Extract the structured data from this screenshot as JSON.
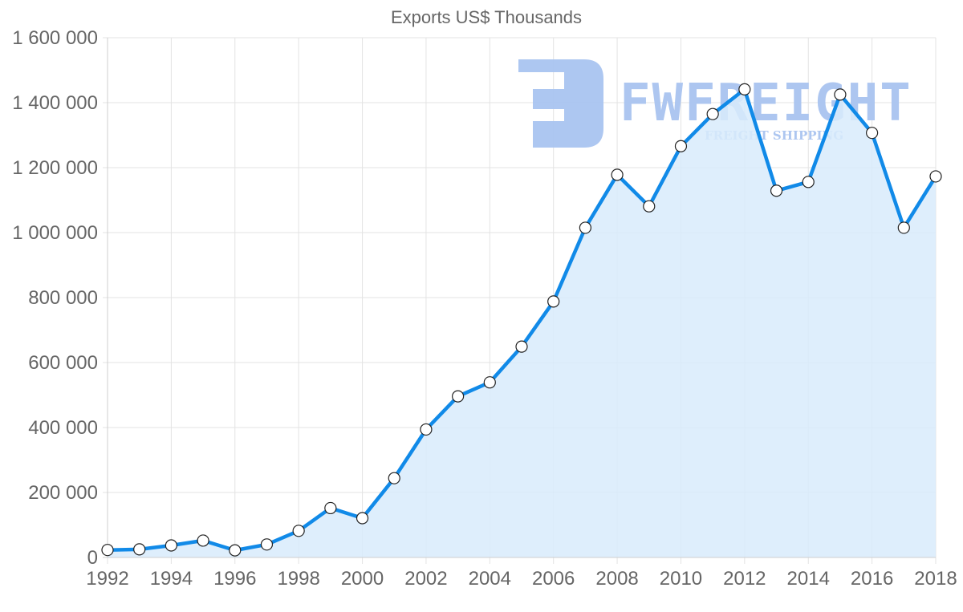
{
  "chart_data": {
    "type": "area",
    "title": "Exports US$ Thousands",
    "xlabel": "",
    "ylabel": "",
    "x": [
      1992,
      1993,
      1994,
      1995,
      1996,
      1997,
      1998,
      1999,
      2000,
      2001,
      2002,
      2003,
      2004,
      2005,
      2006,
      2007,
      2008,
      2009,
      2010,
      2011,
      2012,
      2013,
      2014,
      2015,
      2016,
      2017,
      2018
    ],
    "series": [
      {
        "name": "Exports US$ Thousands",
        "values": [
          23000,
          25000,
          37000,
          52000,
          22000,
          40000,
          82000,
          152000,
          121000,
          244000,
          394000,
          496000,
          539000,
          649000,
          788000,
          1015000,
          1178000,
          1081000,
          1266000,
          1365000,
          1441000,
          1129000,
          1156000,
          1425000,
          1307000,
          1015000,
          1173000
        ],
        "line_color": "#118ae8",
        "fill_color": "#d8ebfc"
      }
    ],
    "xlim": [
      1992,
      2018
    ],
    "ylim": [
      0,
      1600000
    ],
    "x_ticks": [
      "1992",
      "1994",
      "1996",
      "1998",
      "2000",
      "2002",
      "2004",
      "2006",
      "2008",
      "2010",
      "2012",
      "2014",
      "2016",
      "2018"
    ],
    "y_ticks": [
      "0",
      "200 000",
      "400 000",
      "600 000",
      "800 000",
      "1 000 000",
      "1 200 000",
      "1 400 000",
      "1 600 000"
    ],
    "grid": true,
    "legend": "none"
  },
  "watermark": {
    "brand": "FWFREIGHT",
    "tagline": "FREIGHT SHIPPING",
    "color": "#a9c4f0"
  }
}
